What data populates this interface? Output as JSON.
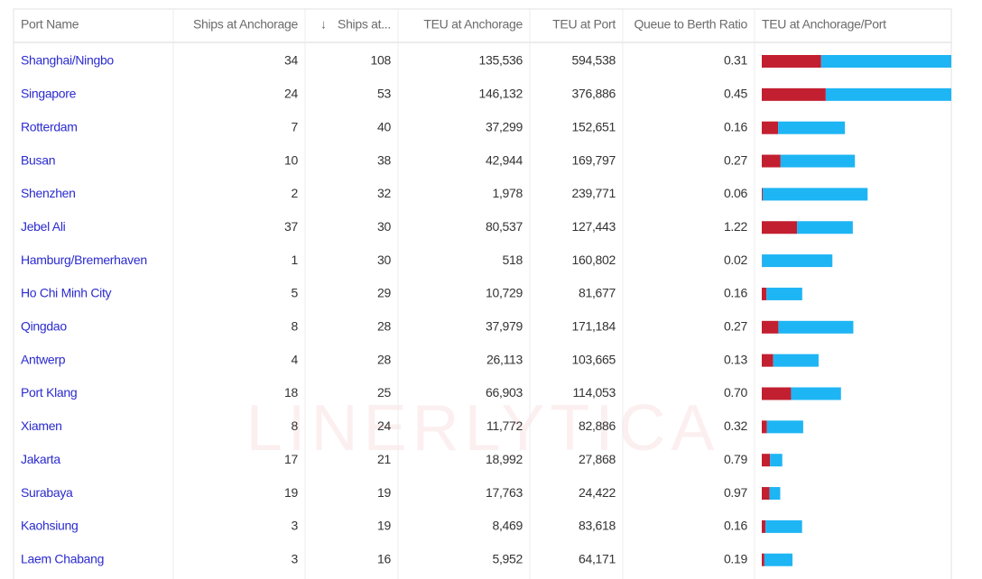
{
  "watermark": "LINERLYTICA",
  "table": {
    "headers": [
      "Port Name",
      "Ships at Anchorage",
      "Ships at...",
      "TEU at Anchorage",
      "TEU at Port",
      "Queue to Berth Ratio",
      "TEU at Anchorage/Port"
    ],
    "rows": [
      {
        "port": "Shanghai/Ningbo",
        "ships_anchorage": 34,
        "ships_port": 108,
        "teu_anchorage": {
          "value": 135536,
          "label": "135,536"
        },
        "teu_port": {
          "value": 594538,
          "label": "594,538"
        },
        "ratio": "0.31"
      },
      {
        "port": "Singapore",
        "ships_anchorage": 24,
        "ships_port": 53,
        "teu_anchorage": {
          "value": 146132,
          "label": "146,132"
        },
        "teu_port": {
          "value": 376886,
          "label": "376,886"
        },
        "ratio": "0.45"
      },
      {
        "port": "Rotterdam",
        "ships_anchorage": 7,
        "ships_port": 40,
        "teu_anchorage": {
          "value": 37299,
          "label": "37,299"
        },
        "teu_port": {
          "value": 152651,
          "label": "152,651"
        },
        "ratio": "0.16"
      },
      {
        "port": "Busan",
        "ships_anchorage": 10,
        "ships_port": 38,
        "teu_anchorage": {
          "value": 42944,
          "label": "42,944"
        },
        "teu_port": {
          "value": 169797,
          "label": "169,797"
        },
        "ratio": "0.27"
      },
      {
        "port": "Shenzhen",
        "ships_anchorage": 2,
        "ships_port": 32,
        "teu_anchorage": {
          "value": 1978,
          "label": "1,978"
        },
        "teu_port": {
          "value": 239771,
          "label": "239,771"
        },
        "ratio": "0.06"
      },
      {
        "port": "Jebel Ali",
        "ships_anchorage": 37,
        "ships_port": 30,
        "teu_anchorage": {
          "value": 80537,
          "label": "80,537"
        },
        "teu_port": {
          "value": 127443,
          "label": "127,443"
        },
        "ratio": "1.22"
      },
      {
        "port": "Hamburg/Bremerhaven",
        "ships_anchorage": 1,
        "ships_port": 30,
        "teu_anchorage": {
          "value": 518,
          "label": "518"
        },
        "teu_port": {
          "value": 160802,
          "label": "160,802"
        },
        "ratio": "0.02"
      },
      {
        "port": "Ho Chi Minh City",
        "ships_anchorage": 5,
        "ships_port": 29,
        "teu_anchorage": {
          "value": 10729,
          "label": "10,729"
        },
        "teu_port": {
          "value": 81677,
          "label": "81,677"
        },
        "ratio": "0.16"
      },
      {
        "port": "Qingdao",
        "ships_anchorage": 8,
        "ships_port": 28,
        "teu_anchorage": {
          "value": 37979,
          "label": "37,979"
        },
        "teu_port": {
          "value": 171184,
          "label": "171,184"
        },
        "ratio": "0.27"
      },
      {
        "port": "Antwerp",
        "ships_anchorage": 4,
        "ships_port": 28,
        "teu_anchorage": {
          "value": 26113,
          "label": "26,113"
        },
        "teu_port": {
          "value": 103665,
          "label": "103,665"
        },
        "ratio": "0.13"
      },
      {
        "port": "Port Klang",
        "ships_anchorage": 18,
        "ships_port": 25,
        "teu_anchorage": {
          "value": 66903,
          "label": "66,903"
        },
        "teu_port": {
          "value": 114053,
          "label": "114,053"
        },
        "ratio": "0.70"
      },
      {
        "port": "Xiamen",
        "ships_anchorage": 8,
        "ships_port": 24,
        "teu_anchorage": {
          "value": 11772,
          "label": "11,772"
        },
        "teu_port": {
          "value": 82886,
          "label": "82,886"
        },
        "ratio": "0.32"
      },
      {
        "port": "Jakarta",
        "ships_anchorage": 17,
        "ships_port": 21,
        "teu_anchorage": {
          "value": 18992,
          "label": "18,992"
        },
        "teu_port": {
          "value": 27868,
          "label": "27,868"
        },
        "ratio": "0.79"
      },
      {
        "port": "Surabaya",
        "ships_anchorage": 19,
        "ships_port": 19,
        "teu_anchorage": {
          "value": 17763,
          "label": "17,763"
        },
        "teu_port": {
          "value": 24422,
          "label": "24,422"
        },
        "ratio": "0.97"
      },
      {
        "port": "Kaohsiung",
        "ships_anchorage": 3,
        "ships_port": 19,
        "teu_anchorage": {
          "value": 8469,
          "label": "8,469"
        },
        "teu_port": {
          "value": 83618,
          "label": "83,618"
        },
        "ratio": "0.16"
      },
      {
        "port": "Laem Chabang",
        "ships_anchorage": 3,
        "ships_port": 16,
        "teu_anchorage": {
          "value": 5952,
          "label": "5,952"
        },
        "teu_port": {
          "value": 64171,
          "label": "64,171"
        },
        "ratio": "0.19"
      }
    ],
    "bar_colors": {
      "anchorage": "#c21f30",
      "port": "#1eb5f4"
    }
  }
}
